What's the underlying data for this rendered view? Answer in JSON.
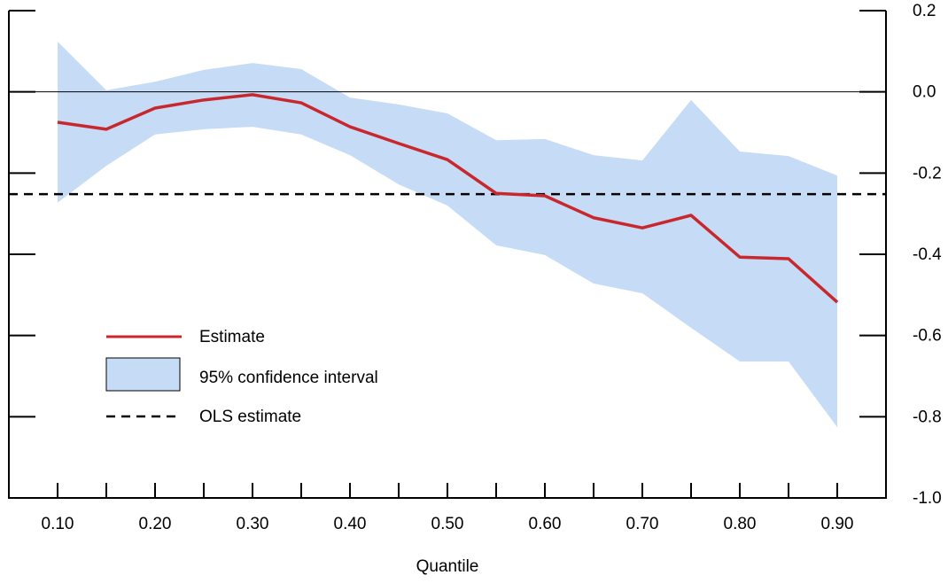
{
  "chart_data": {
    "type": "line",
    "x_label": "Quantile",
    "x": [
      0.1,
      0.15,
      0.2,
      0.25,
      0.3,
      0.35,
      0.4,
      0.45,
      0.5,
      0.55,
      0.6,
      0.65,
      0.7,
      0.75,
      0.8,
      0.85,
      0.9
    ],
    "series": [
      {
        "name": "Estimate",
        "color": "#c8282d",
        "values": [
          -0.075,
          -0.092,
          -0.04,
          -0.02,
          -0.007,
          -0.027,
          -0.086,
          -0.127,
          -0.167,
          -0.25,
          -0.256,
          -0.31,
          -0.335,
          -0.304,
          -0.407,
          -0.411,
          -0.518
        ]
      }
    ],
    "band": {
      "name": "95% confidence interval",
      "color": "#c6dcf6",
      "upper": [
        0.124,
        0.004,
        0.025,
        0.054,
        0.071,
        0.056,
        -0.014,
        -0.031,
        -0.053,
        -0.119,
        -0.116,
        -0.156,
        -0.169,
        -0.02,
        -0.147,
        -0.158,
        -0.206
      ],
      "lower": [
        -0.273,
        -0.182,
        -0.105,
        -0.092,
        -0.086,
        -0.105,
        -0.156,
        -0.228,
        -0.28,
        -0.378,
        -0.402,
        -0.472,
        -0.496,
        -0.581,
        -0.664,
        -0.664,
        -0.826
      ]
    },
    "hline": {
      "name": "OLS estimate",
      "value": -0.252,
      "color": "#000000"
    },
    "zero_line": 0,
    "xlim": [
      0.05,
      0.95
    ],
    "xticks": [
      {
        "value": 0.1,
        "label": "0.10"
      },
      {
        "value": 0.2,
        "label": "0.20"
      },
      {
        "value": 0.3,
        "label": "0.30"
      },
      {
        "value": 0.4,
        "label": "0.40"
      },
      {
        "value": 0.5,
        "label": "0.50"
      },
      {
        "value": 0.6,
        "label": "0.60"
      },
      {
        "value": 0.7,
        "label": "0.70"
      },
      {
        "value": 0.8,
        "label": "0.80"
      },
      {
        "value": 0.9,
        "label": "0.90"
      }
    ],
    "xticks_minor": [
      0.15,
      0.25,
      0.35,
      0.45,
      0.55,
      0.65,
      0.75,
      0.85
    ],
    "ylim": [
      -1.0,
      0.2
    ],
    "yticks": [
      {
        "value": -1.0,
        "label": "-1.0"
      },
      -0.8,
      -0.6,
      -0.4,
      -0.2,
      {
        "value": 0,
        "label": "0.0"
      },
      0.2
    ],
    "legend": "lower left"
  }
}
